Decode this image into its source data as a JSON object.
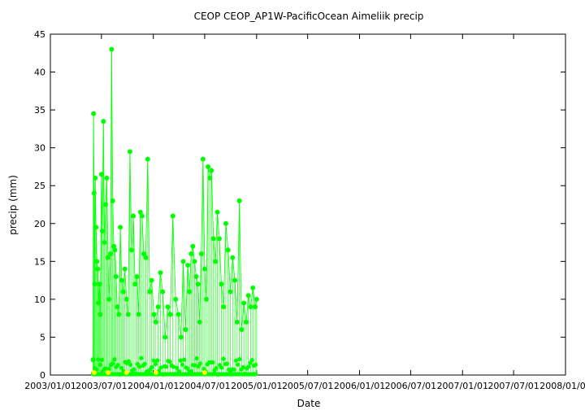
{
  "chart_data": {
    "type": "scatter",
    "title": "CEOP CEOP_AP1W-PacificOcean Aimeliik  precip",
    "xlabel": "Date",
    "ylabel": "precip (mm)",
    "ylim": [
      0,
      45
    ],
    "xlim": [
      "2003-01-01",
      "2008-01-01"
    ],
    "y_ticks": [
      0,
      5,
      10,
      15,
      20,
      25,
      30,
      35,
      40,
      45
    ],
    "x_ticks": [
      "2003/01/01",
      "2003/07/01",
      "2004/01/01",
      "2004/07/01",
      "2005/01/01",
      "2005/07/01",
      "2006/01/01",
      "2006/07/01",
      "2007/01/01",
      "2007/07/01",
      "2008/01/01"
    ],
    "grid": false,
    "colors": {
      "line": "#00ff00",
      "points": "#00ff00",
      "highlight": "#ffff00"
    },
    "series": [
      {
        "x": [
          "2003-06-01",
          "2003-06-03",
          "2003-06-05",
          "2003-06-07",
          "2003-06-09",
          "2003-06-12",
          "2003-06-15",
          "2003-06-18",
          "2003-06-21",
          "2003-06-24",
          "2003-06-27",
          "2003-07-01",
          "2003-07-04",
          "2003-07-08",
          "2003-07-12",
          "2003-07-16",
          "2003-07-20",
          "2003-07-24",
          "2003-07-28",
          "2003-08-02",
          "2003-08-06",
          "2003-08-10",
          "2003-08-14",
          "2003-08-18",
          "2003-08-22",
          "2003-08-26",
          "2003-09-01",
          "2003-09-06",
          "2003-09-11",
          "2003-09-16",
          "2003-09-22",
          "2003-09-28",
          "2003-10-04",
          "2003-10-10",
          "2003-10-16",
          "2003-10-22",
          "2003-10-28",
          "2003-11-04",
          "2003-11-10",
          "2003-11-16",
          "2003-11-22",
          "2003-11-28",
          "2003-12-05",
          "2003-12-12",
          "2003-12-19",
          "2003-12-26",
          "2004-01-03",
          "2004-01-10",
          "2004-01-18",
          "2004-01-26",
          "2004-02-03",
          "2004-02-12",
          "2004-02-21",
          "2004-03-01",
          "2004-03-10",
          "2004-03-20",
          "2004-03-30",
          "2004-04-08",
          "2004-04-16",
          "2004-04-24",
          "2004-05-02",
          "2004-05-08",
          "2004-05-14",
          "2004-05-20",
          "2004-05-26",
          "2004-06-01",
          "2004-06-07",
          "2004-06-13",
          "2004-06-19",
          "2004-06-25",
          "2004-07-01",
          "2004-07-07",
          "2004-07-13",
          "2004-07-19",
          "2004-07-25",
          "2004-08-01",
          "2004-08-08",
          "2004-08-15",
          "2004-08-22",
          "2004-08-29",
          "2004-09-06",
          "2004-09-14",
          "2004-09-22",
          "2004-09-30",
          "2004-10-08",
          "2004-10-16",
          "2004-10-24",
          "2004-11-01",
          "2004-11-09",
          "2004-11-17",
          "2004-11-25",
          "2004-12-03",
          "2004-12-11",
          "2004-12-19",
          "2004-12-27",
          "2005-01-01"
        ],
        "y": [
          2,
          34.5,
          24,
          12,
          26,
          19.5,
          15,
          14,
          9.5,
          12,
          8,
          26.5,
          19,
          33.5,
          17.5,
          22.5,
          26,
          15.5,
          10,
          16,
          43,
          23,
          17,
          16.5,
          13,
          9,
          8,
          19.5,
          12.5,
          11,
          14,
          10,
          8,
          29.5,
          16.5,
          21,
          12,
          13,
          8,
          21.5,
          21,
          16,
          15.5,
          28.5,
          11,
          12.5,
          8,
          7,
          9,
          13.5,
          11,
          5,
          9,
          8,
          21,
          10,
          8,
          5,
          15,
          6,
          14.5,
          11,
          16,
          17,
          15,
          13,
          12,
          7,
          16,
          28.5,
          14,
          10,
          27.5,
          26,
          27,
          18,
          15,
          21.5,
          18,
          12,
          9,
          20,
          16.5,
          11,
          15.5,
          12.5,
          7,
          23,
          6,
          9.5,
          7,
          10.5,
          9,
          11.5,
          9,
          10
        ]
      }
    ]
  }
}
